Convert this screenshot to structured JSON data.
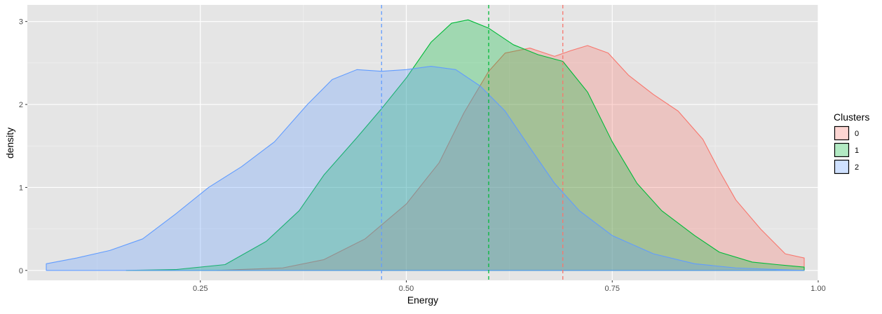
{
  "chart_data": {
    "type": "area",
    "title": "",
    "xlabel": "Energy",
    "ylabel": "density",
    "xlim": [
      0.04,
      1.0
    ],
    "ylim": [
      -0.12,
      3.2
    ],
    "grid": true,
    "x_ticks": [
      0.25,
      0.5,
      0.75,
      1.0
    ],
    "x_tick_labels": [
      "0.25",
      "0.50",
      "0.75",
      "1.00"
    ],
    "y_ticks": [
      0,
      1,
      2,
      3
    ],
    "y_tick_labels": [
      "0",
      "1",
      "2",
      "3"
    ],
    "legend": {
      "title": "Clusters",
      "position": "right",
      "entries": [
        "0",
        "1",
        "2"
      ]
    },
    "background_color": "#e5e5e5",
    "series": [
      {
        "name": "0",
        "color": "#f8766d",
        "mean": 0.69,
        "x": [
          0.27,
          0.35,
          0.4,
          0.45,
          0.5,
          0.54,
          0.57,
          0.6,
          0.62,
          0.65,
          0.68,
          0.7,
          0.72,
          0.745,
          0.77,
          0.8,
          0.83,
          0.86,
          0.88,
          0.9,
          0.93,
          0.96,
          0.983
        ],
        "y": [
          0.0,
          0.03,
          0.13,
          0.38,
          0.8,
          1.3,
          1.9,
          2.4,
          2.62,
          2.68,
          2.58,
          2.65,
          2.71,
          2.62,
          2.35,
          2.12,
          1.92,
          1.58,
          1.2,
          0.85,
          0.5,
          0.2,
          0.15
        ]
      },
      {
        "name": "1",
        "color": "#00ba38",
        "mean": 0.6,
        "x": [
          0.16,
          0.22,
          0.28,
          0.33,
          0.37,
          0.4,
          0.44,
          0.47,
          0.5,
          0.53,
          0.555,
          0.575,
          0.6,
          0.63,
          0.66,
          0.69,
          0.72,
          0.75,
          0.78,
          0.81,
          0.85,
          0.88,
          0.92,
          0.95,
          0.983
        ],
        "y": [
          0.0,
          0.01,
          0.07,
          0.35,
          0.72,
          1.15,
          1.6,
          1.95,
          2.32,
          2.75,
          2.98,
          3.02,
          2.92,
          2.72,
          2.6,
          2.52,
          2.15,
          1.55,
          1.05,
          0.72,
          0.42,
          0.22,
          0.1,
          0.07,
          0.04
        ]
      },
      {
        "name": "2",
        "color": "#619cff",
        "mean": 0.47,
        "x": [
          0.063,
          0.1,
          0.14,
          0.18,
          0.22,
          0.26,
          0.3,
          0.34,
          0.38,
          0.41,
          0.44,
          0.47,
          0.5,
          0.53,
          0.56,
          0.59,
          0.62,
          0.65,
          0.68,
          0.71,
          0.75,
          0.8,
          0.85,
          0.9,
          0.95,
          0.983
        ],
        "y": [
          0.08,
          0.15,
          0.24,
          0.38,
          0.68,
          1.0,
          1.25,
          1.55,
          2.0,
          2.3,
          2.42,
          2.4,
          2.42,
          2.46,
          2.42,
          2.22,
          1.92,
          1.48,
          1.05,
          0.72,
          0.42,
          0.2,
          0.08,
          0.03,
          0.01,
          0.0
        ]
      }
    ]
  }
}
